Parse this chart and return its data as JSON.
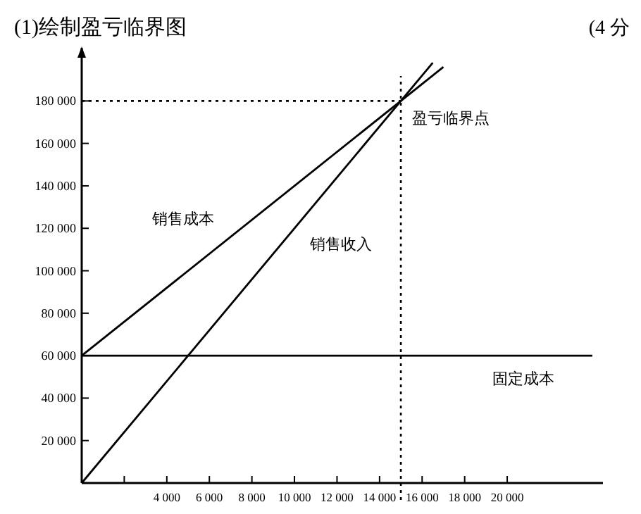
{
  "chart_data": {
    "type": "line",
    "title": "(1)绘制盈亏临界图",
    "annotations": [
      "(4 分",
      {
        "text": "盈亏临界点",
        "x": 15000,
        "y": 180000
      }
    ],
    "xlim": [
      0,
      24500
    ],
    "ylim": [
      0,
      205000
    ],
    "xticks": [
      {
        "value": 2000,
        "label": null
      },
      {
        "value": 4000,
        "label": "4 000"
      },
      {
        "value": 6000,
        "label": "6 000"
      },
      {
        "value": 8000,
        "label": "8 000"
      },
      {
        "value": 10000,
        "label": "10 000"
      },
      {
        "value": 12000,
        "label": "12 000"
      },
      {
        "value": 14000,
        "label": "14 000"
      },
      {
        "value": 16000,
        "label": "16 000"
      },
      {
        "value": 18000,
        "label": "18 000"
      },
      {
        "value": 20000,
        "label": "20 000"
      }
    ],
    "yticks": [
      {
        "value": 20000,
        "label": "20 000"
      },
      {
        "value": 40000,
        "label": "40 000"
      },
      {
        "value": 60000,
        "label": "60 000"
      },
      {
        "value": 80000,
        "label": "80 000"
      },
      {
        "value": 100000,
        "label": "100 000"
      },
      {
        "value": 120000,
        "label": "120 000"
      },
      {
        "value": 140000,
        "label": "140 000"
      },
      {
        "value": 160000,
        "label": "160 000"
      },
      {
        "value": 180000,
        "label": "180 000"
      }
    ],
    "grid": false,
    "legend": false,
    "marker": "none",
    "line_style": "solid",
    "ref_lines": [
      {
        "axis": "x",
        "value": 15000,
        "line_style": "dotted",
        "color": "#000000"
      },
      {
        "axis": "y",
        "value": 180000,
        "line_style": "dotted",
        "color": "#000000"
      }
    ],
    "series": [
      {
        "name": "销售成本",
        "color": "#000000",
        "x": [
          0,
          17000
        ],
        "values": [
          60000,
          196000
        ]
      },
      {
        "name": "销售收入",
        "color": "#000000",
        "x": [
          0,
          16500
        ],
        "values": [
          0,
          198000
        ]
      },
      {
        "name": "固定成本",
        "color": "#000000",
        "x": [
          0,
          24000
        ],
        "values": [
          60000,
          60000
        ]
      }
    ]
  }
}
